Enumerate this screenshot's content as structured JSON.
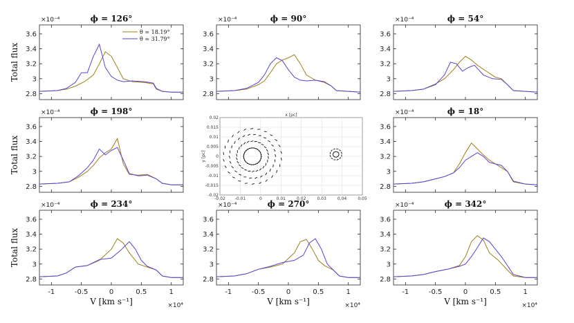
{
  "colors": {
    "theta1": "#9c7f14",
    "theta2": "#5a3fd6",
    "axis": "#222222"
  },
  "common": {
    "ylabel": "Total flux",
    "xlabel": "V [km s⁻¹]",
    "y_exponent": "×10⁻⁴",
    "x_exponent": "×10⁴",
    "xlim": [
      -1.2,
      1.2
    ],
    "ylim": [
      2.72,
      3.72
    ],
    "xticks": [
      "-1",
      "-0.5",
      "0",
      "0.5",
      "1"
    ],
    "yticks": [
      "2.8",
      "3",
      "3.2",
      "3.4",
      "3.6"
    ],
    "legend": [
      "θ = 18.19°",
      "θ = 31.79°"
    ]
  },
  "inset": {
    "title": "x [pc]",
    "ylabel": "y [pc]",
    "xticks": [
      "-0.02",
      "-0.01",
      "0",
      "0.01",
      "0.02",
      "0.03",
      "0.04",
      "0.05"
    ],
    "yticks": [
      "0.02",
      "0.015",
      "0.01",
      "0.005",
      "0",
      "-0.005",
      "-0.01",
      "-0.015",
      "-0.02"
    ],
    "xlim": [
      -0.02,
      0.05
    ],
    "ylim": [
      -0.02,
      0.02
    ]
  },
  "chart_data": [
    {
      "type": "line",
      "title": "ϕ = 126°",
      "xlabel": "",
      "ylabel": "Total flux",
      "series": [
        {
          "name": "θ = 18.19°",
          "x": [
            -1.2,
            -0.9,
            -0.75,
            -0.6,
            -0.45,
            -0.3,
            -0.2,
            -0.1,
            0.0,
            0.1,
            0.2,
            0.35,
            0.55,
            0.7,
            0.75,
            0.85,
            1.0,
            1.2
          ],
          "y": [
            2.83,
            2.84,
            2.86,
            2.9,
            2.96,
            3.05,
            3.2,
            3.36,
            3.3,
            3.15,
            3.0,
            2.96,
            2.95,
            2.93,
            2.86,
            2.83,
            2.82,
            2.82
          ]
        },
        {
          "name": "θ = 31.79°",
          "x": [
            -1.2,
            -0.9,
            -0.75,
            -0.6,
            -0.5,
            -0.4,
            -0.3,
            -0.2,
            -0.1,
            0.0,
            0.1,
            0.2,
            0.35,
            0.55,
            0.7,
            0.75,
            0.85,
            1.0,
            1.2
          ],
          "y": [
            2.83,
            2.84,
            2.87,
            2.95,
            3.08,
            3.08,
            3.3,
            3.46,
            3.15,
            3.03,
            2.98,
            2.96,
            2.97,
            2.96,
            2.94,
            2.87,
            2.83,
            2.82,
            2.82
          ]
        }
      ]
    },
    {
      "type": "line",
      "title": "ϕ = 90°",
      "xlabel": "",
      "ylabel": "",
      "series": [
        {
          "name": "θ = 18.19°",
          "x": [
            -1.2,
            -0.9,
            -0.7,
            -0.5,
            -0.4,
            -0.3,
            -0.2,
            -0.1,
            0.0,
            0.1,
            0.2,
            0.3,
            0.45,
            0.6,
            0.72,
            0.8,
            1.0,
            1.2
          ],
          "y": [
            2.83,
            2.84,
            2.86,
            2.92,
            2.97,
            3.08,
            3.2,
            3.25,
            3.28,
            3.32,
            3.2,
            3.05,
            2.98,
            2.95,
            2.9,
            2.84,
            2.83,
            2.82
          ]
        },
        {
          "name": "θ = 31.79°",
          "x": [
            -1.2,
            -0.9,
            -0.7,
            -0.5,
            -0.4,
            -0.3,
            -0.2,
            -0.1,
            0.0,
            0.1,
            0.2,
            0.3,
            0.45,
            0.6,
            0.72,
            0.8,
            1.0,
            1.2
          ],
          "y": [
            2.83,
            2.84,
            2.87,
            2.95,
            3.05,
            3.2,
            3.28,
            3.24,
            3.12,
            3.02,
            2.98,
            2.97,
            2.98,
            2.96,
            2.9,
            2.84,
            2.83,
            2.82
          ]
        }
      ]
    },
    {
      "type": "line",
      "title": "ϕ = 54°",
      "xlabel": "",
      "ylabel": "",
      "series": [
        {
          "name": "θ = 18.19°",
          "x": [
            -1.2,
            -0.9,
            -0.7,
            -0.5,
            -0.35,
            -0.2,
            -0.1,
            0.0,
            0.1,
            0.2,
            0.35,
            0.5,
            0.6,
            0.7,
            0.8,
            1.0,
            1.2
          ],
          "y": [
            2.83,
            2.84,
            2.86,
            2.93,
            3.0,
            3.12,
            3.22,
            3.3,
            3.25,
            3.18,
            3.1,
            3.02,
            3.0,
            2.92,
            2.84,
            2.83,
            2.82
          ]
        },
        {
          "name": "θ = 31.79°",
          "x": [
            -1.2,
            -0.9,
            -0.7,
            -0.5,
            -0.35,
            -0.25,
            -0.15,
            -0.05,
            0.05,
            0.15,
            0.3,
            0.45,
            0.6,
            0.7,
            0.8,
            1.0,
            1.2
          ],
          "y": [
            2.83,
            2.84,
            2.86,
            2.92,
            3.05,
            3.22,
            3.2,
            3.1,
            3.15,
            3.18,
            3.05,
            3.0,
            2.99,
            2.92,
            2.84,
            2.83,
            2.82
          ]
        }
      ]
    },
    {
      "type": "line",
      "title": "ϕ = 198°",
      "xlabel": "",
      "ylabel": "Total flux",
      "series": [
        {
          "name": "θ = 18.19°",
          "x": [
            -1.2,
            -0.9,
            -0.7,
            -0.55,
            -0.4,
            -0.3,
            -0.2,
            -0.1,
            0.0,
            0.1,
            0.2,
            0.3,
            0.45,
            0.6,
            0.75,
            0.85,
            1.0,
            1.2
          ],
          "y": [
            2.83,
            2.84,
            2.86,
            2.92,
            3.0,
            3.08,
            3.18,
            3.25,
            3.3,
            3.44,
            3.1,
            2.96,
            2.95,
            2.96,
            2.9,
            2.84,
            2.82,
            2.82
          ]
        },
        {
          "name": "θ = 31.79°",
          "x": [
            -1.2,
            -0.9,
            -0.7,
            -0.55,
            -0.4,
            -0.3,
            -0.2,
            -0.1,
            0.0,
            0.1,
            0.2,
            0.3,
            0.45,
            0.6,
            0.75,
            0.85,
            1.0,
            1.2
          ],
          "y": [
            2.83,
            2.84,
            2.86,
            2.94,
            3.05,
            3.15,
            3.3,
            3.22,
            3.28,
            3.32,
            3.15,
            2.97,
            2.94,
            2.95,
            2.9,
            2.84,
            2.82,
            2.82
          ]
        }
      ]
    },
    {
      "type": "line",
      "title": "ϕ = 18°",
      "xlabel": "",
      "ylabel": "",
      "series": [
        {
          "name": "θ = 18.19°",
          "x": [
            -1.2,
            -0.9,
            -0.7,
            -0.5,
            -0.35,
            -0.2,
            -0.1,
            0.0,
            0.1,
            0.2,
            0.3,
            0.4,
            0.5,
            0.6,
            0.7,
            0.8,
            1.0,
            1.2
          ],
          "y": [
            2.83,
            2.84,
            2.86,
            2.9,
            2.93,
            2.98,
            3.1,
            3.25,
            3.38,
            3.3,
            3.22,
            3.15,
            3.1,
            3.05,
            3.0,
            2.86,
            2.83,
            2.82
          ]
        },
        {
          "name": "θ = 31.79°",
          "x": [
            -1.2,
            -0.9,
            -0.7,
            -0.5,
            -0.35,
            -0.2,
            -0.1,
            0.0,
            0.1,
            0.2,
            0.3,
            0.4,
            0.5,
            0.6,
            0.7,
            0.8,
            1.0,
            1.2
          ],
          "y": [
            2.83,
            2.84,
            2.86,
            2.9,
            2.93,
            2.98,
            3.05,
            3.15,
            3.2,
            3.25,
            3.2,
            3.12,
            3.1,
            3.08,
            3.0,
            2.87,
            2.83,
            2.82
          ]
        }
      ]
    },
    {
      "type": "line",
      "title": "ϕ = 234°",
      "xlabel": "V [km s⁻¹]",
      "ylabel": "Total flux",
      "series": [
        {
          "name": "θ = 18.19°",
          "x": [
            -1.2,
            -0.9,
            -0.75,
            -0.6,
            -0.4,
            -0.2,
            0.0,
            0.1,
            0.2,
            0.3,
            0.45,
            0.6,
            0.75,
            0.85,
            1.0,
            1.2
          ],
          "y": [
            2.83,
            2.84,
            2.88,
            2.96,
            2.98,
            3.05,
            3.2,
            3.34,
            3.28,
            3.15,
            3.0,
            2.96,
            2.92,
            2.84,
            2.82,
            2.82
          ]
        },
        {
          "name": "θ = 31.79°",
          "x": [
            -1.2,
            -0.9,
            -0.75,
            -0.6,
            -0.4,
            -0.2,
            0.0,
            0.15,
            0.3,
            0.4,
            0.5,
            0.6,
            0.75,
            0.85,
            1.0,
            1.2
          ],
          "y": [
            2.83,
            2.84,
            2.88,
            2.96,
            2.98,
            3.06,
            3.08,
            3.18,
            3.3,
            3.2,
            3.05,
            2.97,
            2.92,
            2.84,
            2.82,
            2.82
          ]
        }
      ]
    },
    {
      "type": "line",
      "title": "ϕ = 270°",
      "xlabel": "V [km s⁻¹]",
      "ylabel": "",
      "series": [
        {
          "name": "θ = 18.19°",
          "x": [
            -1.2,
            -0.9,
            -0.7,
            -0.5,
            -0.3,
            -0.1,
            0.1,
            0.2,
            0.3,
            0.4,
            0.5,
            0.6,
            0.75,
            0.85,
            1.0,
            1.2
          ],
          "y": [
            2.83,
            2.84,
            2.87,
            2.93,
            2.96,
            3.0,
            3.15,
            3.3,
            3.33,
            3.2,
            3.05,
            2.98,
            2.92,
            2.84,
            2.82,
            2.82
          ]
        },
        {
          "name": "θ = 31.79°",
          "x": [
            -1.2,
            -0.9,
            -0.7,
            -0.5,
            -0.3,
            -0.1,
            0.1,
            0.25,
            0.35,
            0.45,
            0.55,
            0.65,
            0.75,
            0.85,
            1.0,
            1.2
          ],
          "y": [
            2.83,
            2.84,
            2.87,
            2.93,
            2.97,
            3.02,
            3.05,
            3.12,
            3.28,
            3.34,
            3.2,
            3.0,
            2.92,
            2.84,
            2.82,
            2.82
          ]
        }
      ]
    },
    {
      "type": "line",
      "title": "ϕ = 342°",
      "xlabel": "V [km s⁻¹]",
      "ylabel": "",
      "series": [
        {
          "name": "θ = 18.19°",
          "x": [
            -1.2,
            -0.9,
            -0.7,
            -0.5,
            -0.3,
            -0.1,
            0.0,
            0.1,
            0.2,
            0.3,
            0.4,
            0.55,
            0.7,
            0.8,
            1.0,
            1.2
          ],
          "y": [
            2.83,
            2.84,
            2.86,
            2.9,
            2.93,
            2.98,
            3.1,
            3.3,
            3.38,
            3.32,
            3.15,
            3.05,
            2.92,
            2.84,
            2.82,
            2.82
          ]
        },
        {
          "name": "θ = 31.79°",
          "x": [
            -1.2,
            -0.9,
            -0.7,
            -0.5,
            -0.3,
            -0.1,
            0.0,
            0.1,
            0.2,
            0.3,
            0.4,
            0.5,
            0.6,
            0.7,
            0.8,
            1.0,
            1.2
          ],
          "y": [
            2.83,
            2.84,
            2.86,
            2.9,
            2.93,
            2.97,
            3.0,
            3.1,
            3.22,
            3.35,
            3.3,
            3.2,
            3.1,
            2.98,
            2.86,
            2.82,
            2.82
          ]
        }
      ]
    }
  ]
}
